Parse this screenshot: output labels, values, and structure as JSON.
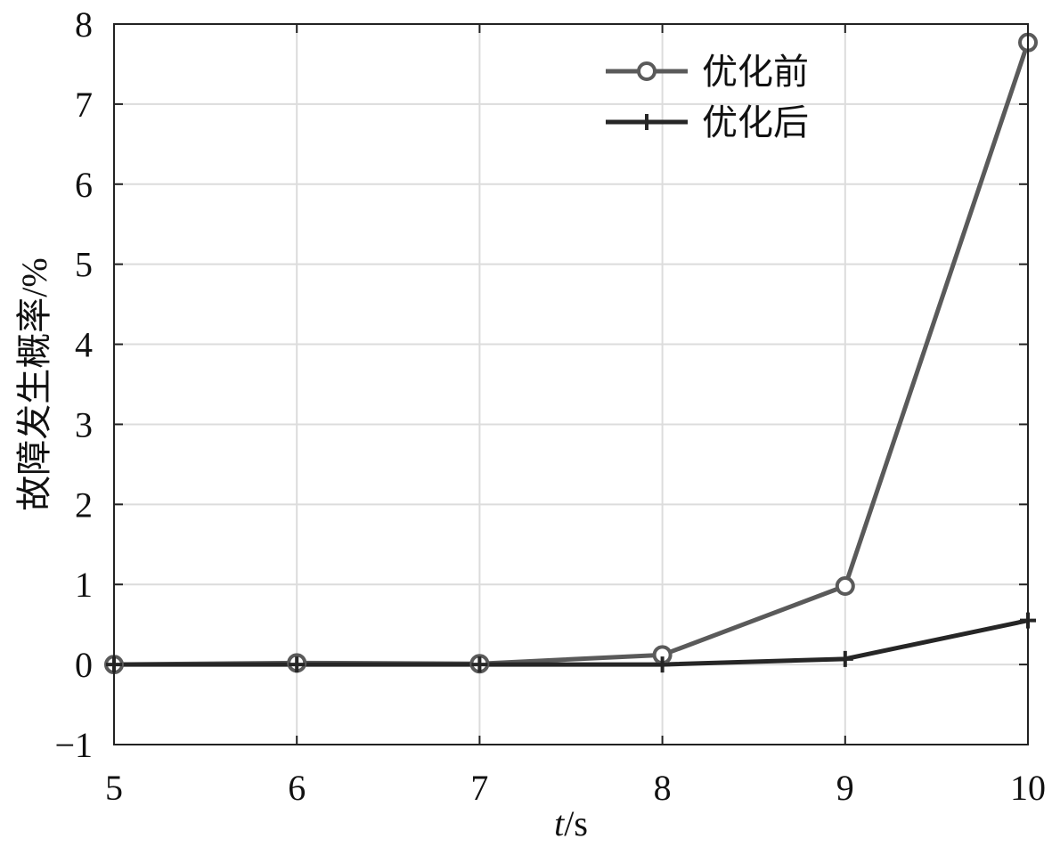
{
  "chart_data": {
    "type": "line",
    "xlabel_italic": "t",
    "xlabel_unit": "/s",
    "ylabel": "故障发生概率/%",
    "xlim": [
      5,
      10
    ],
    "ylim": [
      -1,
      8
    ],
    "xticks": [
      5,
      6,
      7,
      8,
      9,
      10
    ],
    "yticks": [
      -1,
      0,
      1,
      2,
      3,
      4,
      5,
      6,
      7,
      8
    ],
    "ytick_labels": [
      "−1",
      "0",
      "1",
      "2",
      "3",
      "4",
      "5",
      "6",
      "7",
      "8"
    ],
    "grid": true,
    "legend_position": "top-right",
    "x": [
      5,
      6,
      7,
      8,
      9,
      10
    ],
    "series": [
      {
        "name": "优化前",
        "marker": "circle",
        "color": "#5a5a5a",
        "values": [
          0,
          0.02,
          0.01,
          0.12,
          0.98,
          7.77
        ]
      },
      {
        "name": "优化后",
        "marker": "plus",
        "color": "#262626",
        "values": [
          0,
          0,
          0,
          0,
          0.07,
          0.55
        ]
      }
    ]
  }
}
